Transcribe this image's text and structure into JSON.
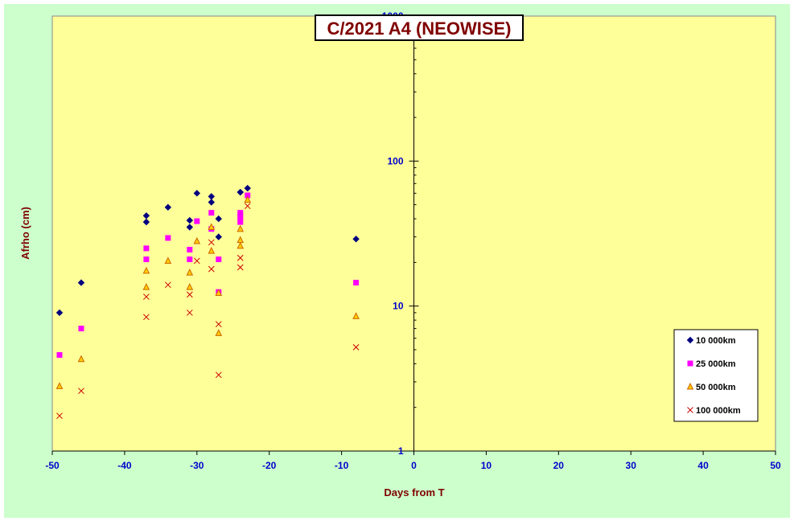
{
  "chart_data": {
    "type": "scatter",
    "title": "C/2021 A4 (NEOWISE)",
    "xlabel": "Days from  T",
    "ylabel": "Afrho (cm)",
    "xlim": [
      -50,
      50
    ],
    "ylim": [
      1,
      1000
    ],
    "y_scale": "log",
    "x_ticks": [
      -50,
      -40,
      -30,
      -20,
      -10,
      0,
      10,
      20,
      30,
      40,
      50
    ],
    "x_tick_labels": [
      "-50",
      "-40",
      "-30",
      "-20",
      "-10",
      "0",
      "10",
      "20",
      "30",
      "40",
      "50"
    ],
    "y_ticks": [
      1,
      10,
      100,
      1000
    ],
    "y_tick_labels": [
      "1",
      "10",
      "100",
      "1000"
    ],
    "grid": false,
    "legend_position": "bottom-right",
    "colors": {
      "plot_bg": "#ffff99",
      "frame_bg": "#ccffcc",
      "title_color": "#800000",
      "axis_label_color": "#800000",
      "tick_label_color": "#0000cc",
      "axis_color": "#000000"
    },
    "series": [
      {
        "name": "10 000km",
        "marker": "diamond",
        "color": "#000080",
        "x": [
          -49,
          -46,
          -37,
          -37,
          -34,
          -31,
          -31,
          -30,
          -28,
          -28,
          -27,
          -27,
          -24,
          -24,
          -23,
          -8
        ],
        "y": [
          9,
          14.5,
          38,
          42,
          48,
          35,
          39,
          60,
          57,
          52,
          40,
          30,
          61,
          61,
          65,
          29
        ]
      },
      {
        "name": "25 000km",
        "marker": "square",
        "color": "#ff00ff",
        "x": [
          -49,
          -46,
          -37,
          -37,
          -34,
          -31,
          -31,
          -30,
          -28,
          -28,
          -27,
          -27,
          -24,
          -24,
          -24,
          -24,
          -23,
          -8
        ],
        "y": [
          4.6,
          7,
          21,
          25,
          29.5,
          21,
          24.5,
          38.5,
          44,
          34,
          12.5,
          21,
          38,
          40,
          42,
          44,
          58,
          14.5
        ]
      },
      {
        "name": "50 000km",
        "marker": "triangle",
        "color": "#cc6600",
        "fill": "#ffcc00",
        "x": [
          -49,
          -46,
          -37,
          -37,
          -34,
          -31,
          -31,
          -30,
          -28,
          -28,
          -27,
          -27,
          -24,
          -24,
          -24,
          -23,
          -8
        ],
        "y": [
          2.8,
          4.3,
          13.5,
          17.5,
          20.5,
          13.5,
          17,
          28,
          24,
          35,
          6.5,
          12.3,
          26,
          28.5,
          34,
          54,
          8.5
        ]
      },
      {
        "name": "100 000km",
        "marker": "x",
        "color": "#cc0000",
        "x": [
          -49,
          -46,
          -37,
          -37,
          -34,
          -31,
          -31,
          -30,
          -28,
          -28,
          -27,
          -27,
          -24,
          -24,
          -23,
          -8
        ],
        "y": [
          1.75,
          2.6,
          8.4,
          11.6,
          14,
          9,
          12,
          20.5,
          18,
          27.5,
          3.35,
          7.5,
          18.5,
          21.5,
          49,
          5.2
        ]
      }
    ]
  }
}
